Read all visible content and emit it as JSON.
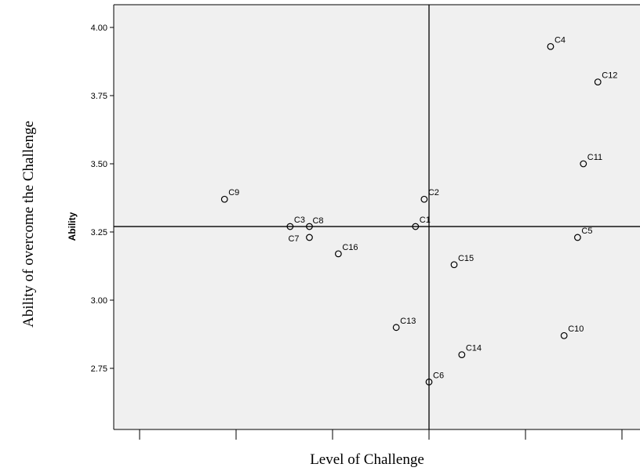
{
  "chart_data": {
    "type": "scatter",
    "title": "",
    "xlabel": "Level of Challenge",
    "ylabel_outer": "Ability of overcome the Challenge",
    "ylabel": "Ability",
    "xlim": [
      -3,
      2
    ],
    "ylim": [
      2.5,
      4.08
    ],
    "y_ticks": [
      "4.00",
      "3.75",
      "3.50",
      "3.25",
      "3.00",
      "2.75"
    ],
    "y_tick_values": [
      4.0,
      3.75,
      3.5,
      3.25,
      3.0,
      2.75
    ],
    "x_tick_values": [
      -3,
      -2,
      -1,
      0,
      1,
      2
    ],
    "reference_lines": {
      "x": 0,
      "y": 3.27
    },
    "grid": false,
    "plot_background": "#f0f0f0",
    "point_color": "#000000",
    "points": [
      {
        "label": "C4",
        "x": 1.26,
        "y": 3.93
      },
      {
        "label": "C12",
        "x": 1.75,
        "y": 3.8
      },
      {
        "label": "C11",
        "x": 1.6,
        "y": 3.5
      },
      {
        "label": "C9",
        "x": -2.12,
        "y": 3.37
      },
      {
        "label": "C2",
        "x": -0.05,
        "y": 3.37
      },
      {
        "label": "C3",
        "x": -1.44,
        "y": 3.27
      },
      {
        "label": "C8",
        "x": -1.24,
        "y": 3.27
      },
      {
        "label": "C1",
        "x": -0.14,
        "y": 3.27
      },
      {
        "label": "C7",
        "x": -1.24,
        "y": 3.23
      },
      {
        "label": "C5",
        "x": 1.54,
        "y": 3.23
      },
      {
        "label": "C16",
        "x": -0.94,
        "y": 3.17
      },
      {
        "label": "C15",
        "x": 0.26,
        "y": 3.13
      },
      {
        "label": "C13",
        "x": -0.34,
        "y": 2.9
      },
      {
        "label": "C10",
        "x": 1.4,
        "y": 2.87
      },
      {
        "label": "C14",
        "x": 0.34,
        "y": 2.8
      },
      {
        "label": "C6",
        "x": 0.0,
        "y": 2.7
      }
    ]
  }
}
